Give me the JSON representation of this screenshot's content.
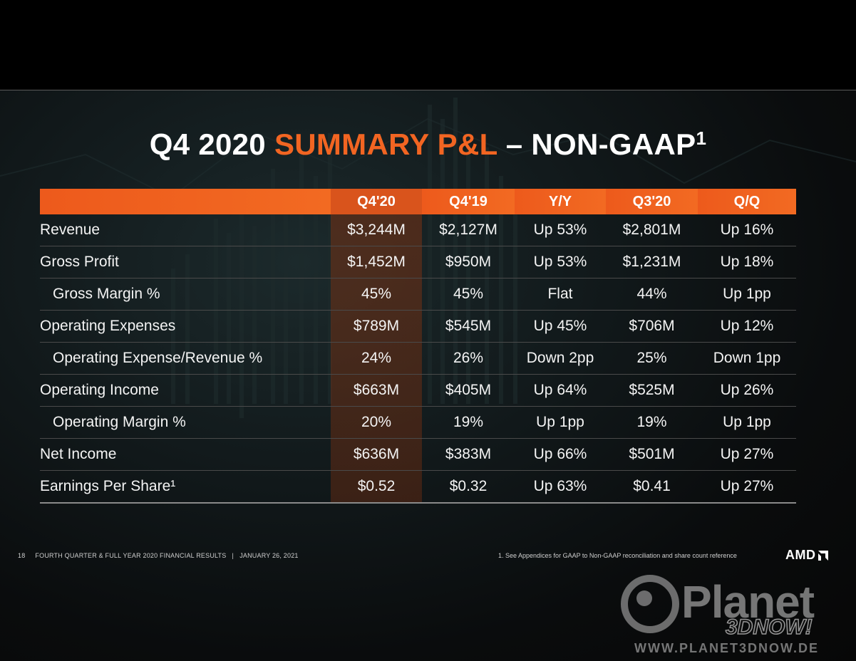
{
  "title": {
    "part1": "Q4 2020 ",
    "accent": "SUMMARY P&L",
    "part2": " – NON-GAAP",
    "superscript": "1"
  },
  "table": {
    "headers": [
      "",
      "Q4'20",
      "Q4'19",
      "Y/Y",
      "Q3'20",
      "Q/Q"
    ],
    "rows": [
      {
        "label": "Revenue",
        "q420": "$3,244M",
        "q419": "$2,127M",
        "yy": "Up 53%",
        "q320": "$2,801M",
        "qq": "Up 16%"
      },
      {
        "label": "Gross Profit",
        "q420": "$1,452M",
        "q419": "$950M",
        "yy": "Up 53%",
        "q320": "$1,231M",
        "qq": "Up 18%"
      },
      {
        "label": "Gross Margin %",
        "q420": "45%",
        "q419": "45%",
        "yy": "Flat",
        "q320": "44%",
        "qq": "Up 1pp"
      },
      {
        "label": "Operating Expenses",
        "q420": "$789M",
        "q419": "$545M",
        "yy": "Up 45%",
        "q320": "$706M",
        "qq": "Up 12%"
      },
      {
        "label": "Operating Expense/Revenue %",
        "q420": "24%",
        "q419": "26%",
        "yy": "Down 2pp",
        "q320": "25%",
        "qq": "Down 1pp"
      },
      {
        "label": "Operating Income",
        "q420": "$663M",
        "q419": "$405M",
        "yy": "Up 64%",
        "q320": "$525M",
        "qq": "Up 26%"
      },
      {
        "label": "Operating Margin %",
        "q420": "20%",
        "q419": "19%",
        "yy": "Up 1pp",
        "q320": "19%",
        "qq": "Up 1pp"
      },
      {
        "label": "Net Income",
        "q420": "$636M",
        "q419": "$383M",
        "yy": "Up 66%",
        "q320": "$501M",
        "qq": "Up 27%"
      },
      {
        "label": "Earnings Per Share¹",
        "q420": "$0.52",
        "q419": "$0.32",
        "yy": "Up 63%",
        "q320": "$0.41",
        "qq": "Up 27%"
      }
    ]
  },
  "footer": {
    "page_number": "18",
    "left_text": "FOURTH QUARTER & FULL YEAR 2020 FINANCIAL RESULTS   |   JANUARY 26, 2021",
    "footnote": "1.  See Appendices for GAAP to Non-GAAP reconciliation and share count reference",
    "logo_text": "AMD"
  },
  "watermark": {
    "name": "Planet",
    "sub": "3DNOW!",
    "url": "WWW.PLANET3DNOW.DE"
  },
  "colors": {
    "accent": "#f26522",
    "header_bar": "#ee5d1e",
    "highlight_column": "#6e2d12"
  }
}
